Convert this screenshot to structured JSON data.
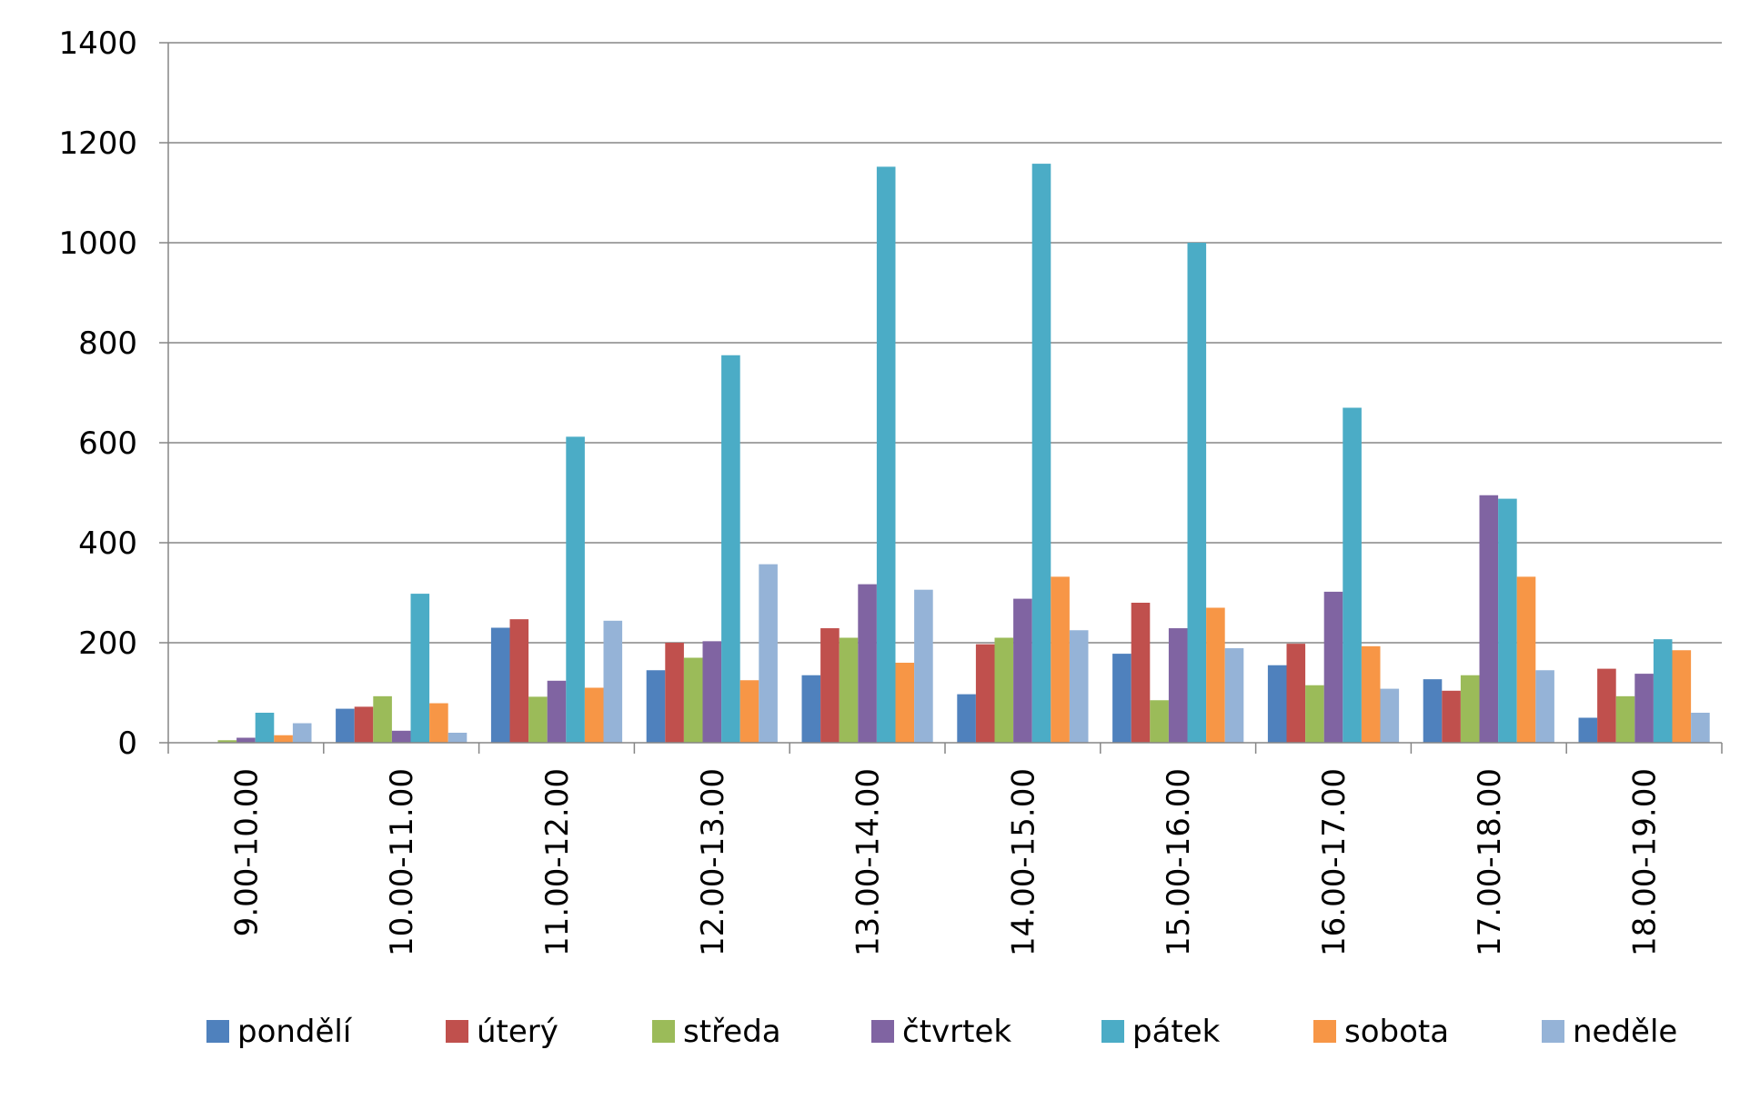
{
  "chart_data": {
    "type": "bar",
    "title": "",
    "xlabel": "",
    "ylabel": "",
    "ylim": [
      0,
      1400
    ],
    "yticks": [
      0,
      200,
      400,
      600,
      800,
      1000,
      1200,
      1400
    ],
    "grid": true,
    "legend_position": "bottom",
    "categories": [
      "9.00-10.00",
      "10.00-11.00",
      "11.00-12.00",
      "12.00-13.00",
      "13.00-14.00",
      "14.00-15.00",
      "15.00-16.00",
      "16.00-17.00",
      "17.00-18.00",
      "18.00-19.00"
    ],
    "series": [
      {
        "name": "pondělí",
        "color": "#4F81BD",
        "values": [
          0,
          68,
          230,
          145,
          135,
          97,
          178,
          155,
          127,
          50
        ]
      },
      {
        "name": "úterý",
        "color": "#C0504D",
        "values": [
          0,
          72,
          247,
          200,
          229,
          197,
          280,
          198,
          104,
          148
        ]
      },
      {
        "name": "středa",
        "color": "#9BBB59",
        "values": [
          5,
          93,
          92,
          170,
          210,
          210,
          85,
          115,
          135,
          93
        ]
      },
      {
        "name": "čtvrtek",
        "color": "#8064A2",
        "values": [
          10,
          24,
          124,
          203,
          317,
          288,
          229,
          302,
          495,
          138
        ]
      },
      {
        "name": "pátek",
        "color": "#4BACC6",
        "values": [
          60,
          298,
          612,
          775,
          1152,
          1158,
          1000,
          670,
          488,
          207
        ]
      },
      {
        "name": "sobota",
        "color": "#F79646",
        "values": [
          15,
          79,
          110,
          125,
          160,
          332,
          270,
          193,
          332,
          185
        ]
      },
      {
        "name": "neděle",
        "color": "#95B3D7",
        "values": [
          39,
          20,
          244,
          357,
          306,
          225,
          189,
          108,
          145,
          60
        ]
      }
    ]
  }
}
